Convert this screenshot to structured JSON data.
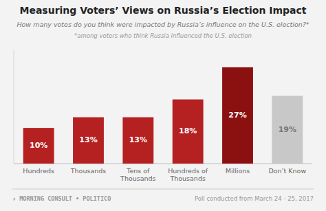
{
  "chart_data": {
    "type": "bar",
    "title": "Measuring Voters’ Views on Russia’s Election Impact",
    "subtitle": "How many votes do you think were impacted by Russia’s influence on the U.S. election?*",
    "annotations": [
      "*among voters who think Russia influenced the U.S. election",
      "⸗ MORNING CONSULT  •  POLITICO",
      "Poll conducted from March 24 - 25, 2017"
    ],
    "categories": [
      "Hundreds",
      "Thousands",
      "Tens of\nThousands",
      "Hundreds of\nThousands",
      "Millions",
      "Don’t Know"
    ],
    "values": [
      10,
      13,
      13,
      18,
      27,
      19
    ],
    "value_labels": [
      "10%",
      "13%",
      "13%",
      "18%",
      "27%",
      "19%"
    ],
    "colors": [
      "#b52020",
      "#b52020",
      "#b52020",
      "#b52020",
      "#8b1010",
      "#c8c8c8"
    ],
    "ylim": [
      0,
      32
    ],
    "data_labels": true,
    "tick_labels": "x"
  }
}
